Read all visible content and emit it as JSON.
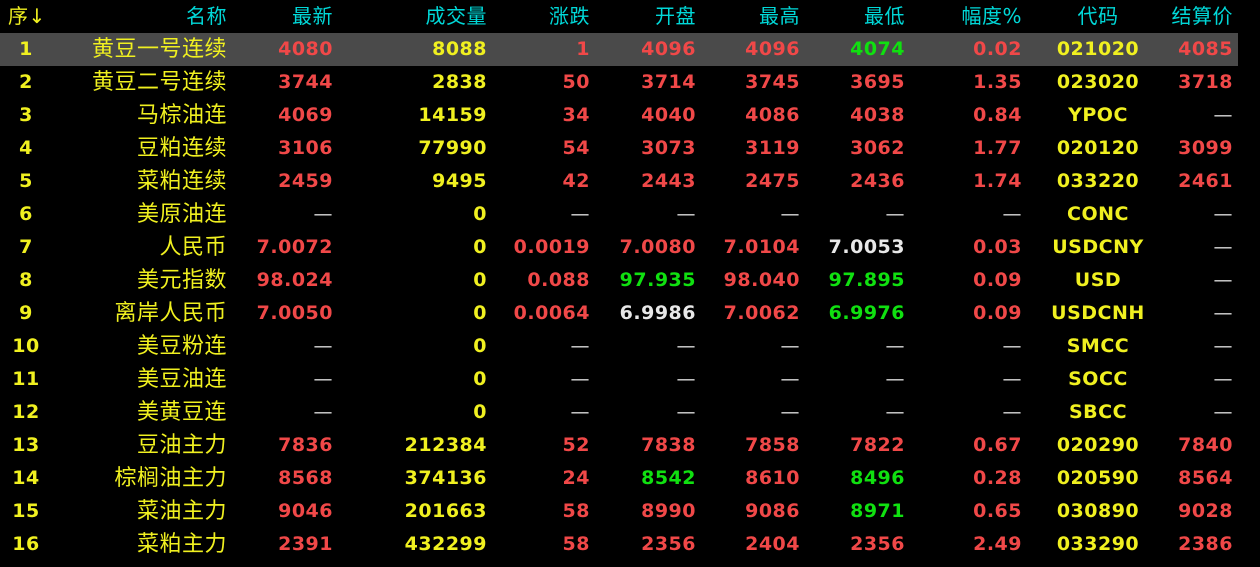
{
  "header": {
    "columns": [
      "序↓",
      "名称",
      "最新",
      "成交量",
      "涨跌",
      "开盘",
      "最高",
      "最低",
      "幅度%",
      "代码",
      "结算价"
    ]
  },
  "selected_row": 1,
  "colors": {
    "r": "#f04848",
    "g": "#10e010",
    "w": "#e8e8e8",
    "y": "#f0f020",
    "header": "#00d8d8",
    "selected_bg": "#4a4a4a"
  },
  "rows": [
    [
      [
        "1",
        "y"
      ],
      [
        "黄豆一号连续",
        "y"
      ],
      [
        "4080",
        "r"
      ],
      [
        "8088",
        "y"
      ],
      [
        "1",
        "r"
      ],
      [
        "4096",
        "r"
      ],
      [
        "4096",
        "r"
      ],
      [
        "4074",
        "g"
      ],
      [
        "0.02",
        "r"
      ],
      [
        "021020",
        "y"
      ],
      [
        "4085",
        "r"
      ]
    ],
    [
      [
        "2",
        "y"
      ],
      [
        "黄豆二号连续",
        "y"
      ],
      [
        "3744",
        "r"
      ],
      [
        "2838",
        "y"
      ],
      [
        "50",
        "r"
      ],
      [
        "3714",
        "r"
      ],
      [
        "3745",
        "r"
      ],
      [
        "3695",
        "r"
      ],
      [
        "1.35",
        "r"
      ],
      [
        "023020",
        "y"
      ],
      [
        "3718",
        "r"
      ]
    ],
    [
      [
        "3",
        "y"
      ],
      [
        "马棕油连",
        "y"
      ],
      [
        "4069",
        "r"
      ],
      [
        "14159",
        "y"
      ],
      [
        "34",
        "r"
      ],
      [
        "4040",
        "r"
      ],
      [
        "4086",
        "r"
      ],
      [
        "4038",
        "r"
      ],
      [
        "0.84",
        "r"
      ],
      [
        "YPOC",
        "y"
      ],
      [
        "—",
        "d"
      ]
    ],
    [
      [
        "4",
        "y"
      ],
      [
        "豆粕连续",
        "y"
      ],
      [
        "3106",
        "r"
      ],
      [
        "77990",
        "y"
      ],
      [
        "54",
        "r"
      ],
      [
        "3073",
        "r"
      ],
      [
        "3119",
        "r"
      ],
      [
        "3062",
        "r"
      ],
      [
        "1.77",
        "r"
      ],
      [
        "020120",
        "y"
      ],
      [
        "3099",
        "r"
      ]
    ],
    [
      [
        "5",
        "y"
      ],
      [
        "菜粕连续",
        "y"
      ],
      [
        "2459",
        "r"
      ],
      [
        "9495",
        "y"
      ],
      [
        "42",
        "r"
      ],
      [
        "2443",
        "r"
      ],
      [
        "2475",
        "r"
      ],
      [
        "2436",
        "r"
      ],
      [
        "1.74",
        "r"
      ],
      [
        "033220",
        "y"
      ],
      [
        "2461",
        "r"
      ]
    ],
    [
      [
        "6",
        "y"
      ],
      [
        "美原油连",
        "y"
      ],
      [
        "—",
        "d"
      ],
      [
        "0",
        "y"
      ],
      [
        "—",
        "d"
      ],
      [
        "—",
        "d"
      ],
      [
        "—",
        "d"
      ],
      [
        "—",
        "d"
      ],
      [
        "—",
        "d"
      ],
      [
        "CONC",
        "y"
      ],
      [
        "—",
        "d"
      ]
    ],
    [
      [
        "7",
        "y"
      ],
      [
        "人民币",
        "y"
      ],
      [
        "7.0072",
        "r"
      ],
      [
        "0",
        "y"
      ],
      [
        "0.0019",
        "r"
      ],
      [
        "7.0080",
        "r"
      ],
      [
        "7.0104",
        "r"
      ],
      [
        "7.0053",
        "w"
      ],
      [
        "0.03",
        "r"
      ],
      [
        "USDCNY",
        "y"
      ],
      [
        "—",
        "d"
      ]
    ],
    [
      [
        "8",
        "y"
      ],
      [
        "美元指数",
        "y"
      ],
      [
        "98.024",
        "r"
      ],
      [
        "0",
        "y"
      ],
      [
        "0.088",
        "r"
      ],
      [
        "97.935",
        "g"
      ],
      [
        "98.040",
        "r"
      ],
      [
        "97.895",
        "g"
      ],
      [
        "0.09",
        "r"
      ],
      [
        "USD",
        "y"
      ],
      [
        "—",
        "d"
      ]
    ],
    [
      [
        "9",
        "y"
      ],
      [
        "离岸人民币",
        "y"
      ],
      [
        "7.0050",
        "r"
      ],
      [
        "0",
        "y"
      ],
      [
        "0.0064",
        "r"
      ],
      [
        "6.9986",
        "w"
      ],
      [
        "7.0062",
        "r"
      ],
      [
        "6.9976",
        "g"
      ],
      [
        "0.09",
        "r"
      ],
      [
        "USDCNH",
        "y"
      ],
      [
        "—",
        "d"
      ]
    ],
    [
      [
        "10",
        "y"
      ],
      [
        "美豆粉连",
        "y"
      ],
      [
        "—",
        "d"
      ],
      [
        "0",
        "y"
      ],
      [
        "—",
        "d"
      ],
      [
        "—",
        "d"
      ],
      [
        "—",
        "d"
      ],
      [
        "—",
        "d"
      ],
      [
        "—",
        "d"
      ],
      [
        "SMCC",
        "y"
      ],
      [
        "—",
        "d"
      ]
    ],
    [
      [
        "11",
        "y"
      ],
      [
        "美豆油连",
        "y"
      ],
      [
        "—",
        "d"
      ],
      [
        "0",
        "y"
      ],
      [
        "—",
        "d"
      ],
      [
        "—",
        "d"
      ],
      [
        "—",
        "d"
      ],
      [
        "—",
        "d"
      ],
      [
        "—",
        "d"
      ],
      [
        "SOCC",
        "y"
      ],
      [
        "—",
        "d"
      ]
    ],
    [
      [
        "12",
        "y"
      ],
      [
        "美黄豆连",
        "y"
      ],
      [
        "—",
        "d"
      ],
      [
        "0",
        "y"
      ],
      [
        "—",
        "d"
      ],
      [
        "—",
        "d"
      ],
      [
        "—",
        "d"
      ],
      [
        "—",
        "d"
      ],
      [
        "—",
        "d"
      ],
      [
        "SBCC",
        "y"
      ],
      [
        "—",
        "d"
      ]
    ],
    [
      [
        "13",
        "y"
      ],
      [
        "豆油主力",
        "y"
      ],
      [
        "7836",
        "r"
      ],
      [
        "212384",
        "y"
      ],
      [
        "52",
        "r"
      ],
      [
        "7838",
        "r"
      ],
      [
        "7858",
        "r"
      ],
      [
        "7822",
        "r"
      ],
      [
        "0.67",
        "r"
      ],
      [
        "020290",
        "y"
      ],
      [
        "7840",
        "r"
      ]
    ],
    [
      [
        "14",
        "y"
      ],
      [
        "棕榈油主力",
        "y"
      ],
      [
        "8568",
        "r"
      ],
      [
        "374136",
        "y"
      ],
      [
        "24",
        "r"
      ],
      [
        "8542",
        "g"
      ],
      [
        "8610",
        "r"
      ],
      [
        "8496",
        "g"
      ],
      [
        "0.28",
        "r"
      ],
      [
        "020590",
        "y"
      ],
      [
        "8564",
        "r"
      ]
    ],
    [
      [
        "15",
        "y"
      ],
      [
        "菜油主力",
        "y"
      ],
      [
        "9046",
        "r"
      ],
      [
        "201663",
        "y"
      ],
      [
        "58",
        "r"
      ],
      [
        "8990",
        "r"
      ],
      [
        "9086",
        "r"
      ],
      [
        "8971",
        "g"
      ],
      [
        "0.65",
        "r"
      ],
      [
        "030890",
        "y"
      ],
      [
        "9028",
        "r"
      ]
    ],
    [
      [
        "16",
        "y"
      ],
      [
        "菜粕主力",
        "y"
      ],
      [
        "2391",
        "r"
      ],
      [
        "432299",
        "y"
      ],
      [
        "58",
        "r"
      ],
      [
        "2356",
        "r"
      ],
      [
        "2404",
        "r"
      ],
      [
        "2356",
        "r"
      ],
      [
        "2.49",
        "r"
      ],
      [
        "033290",
        "y"
      ],
      [
        "2386",
        "r"
      ]
    ]
  ]
}
